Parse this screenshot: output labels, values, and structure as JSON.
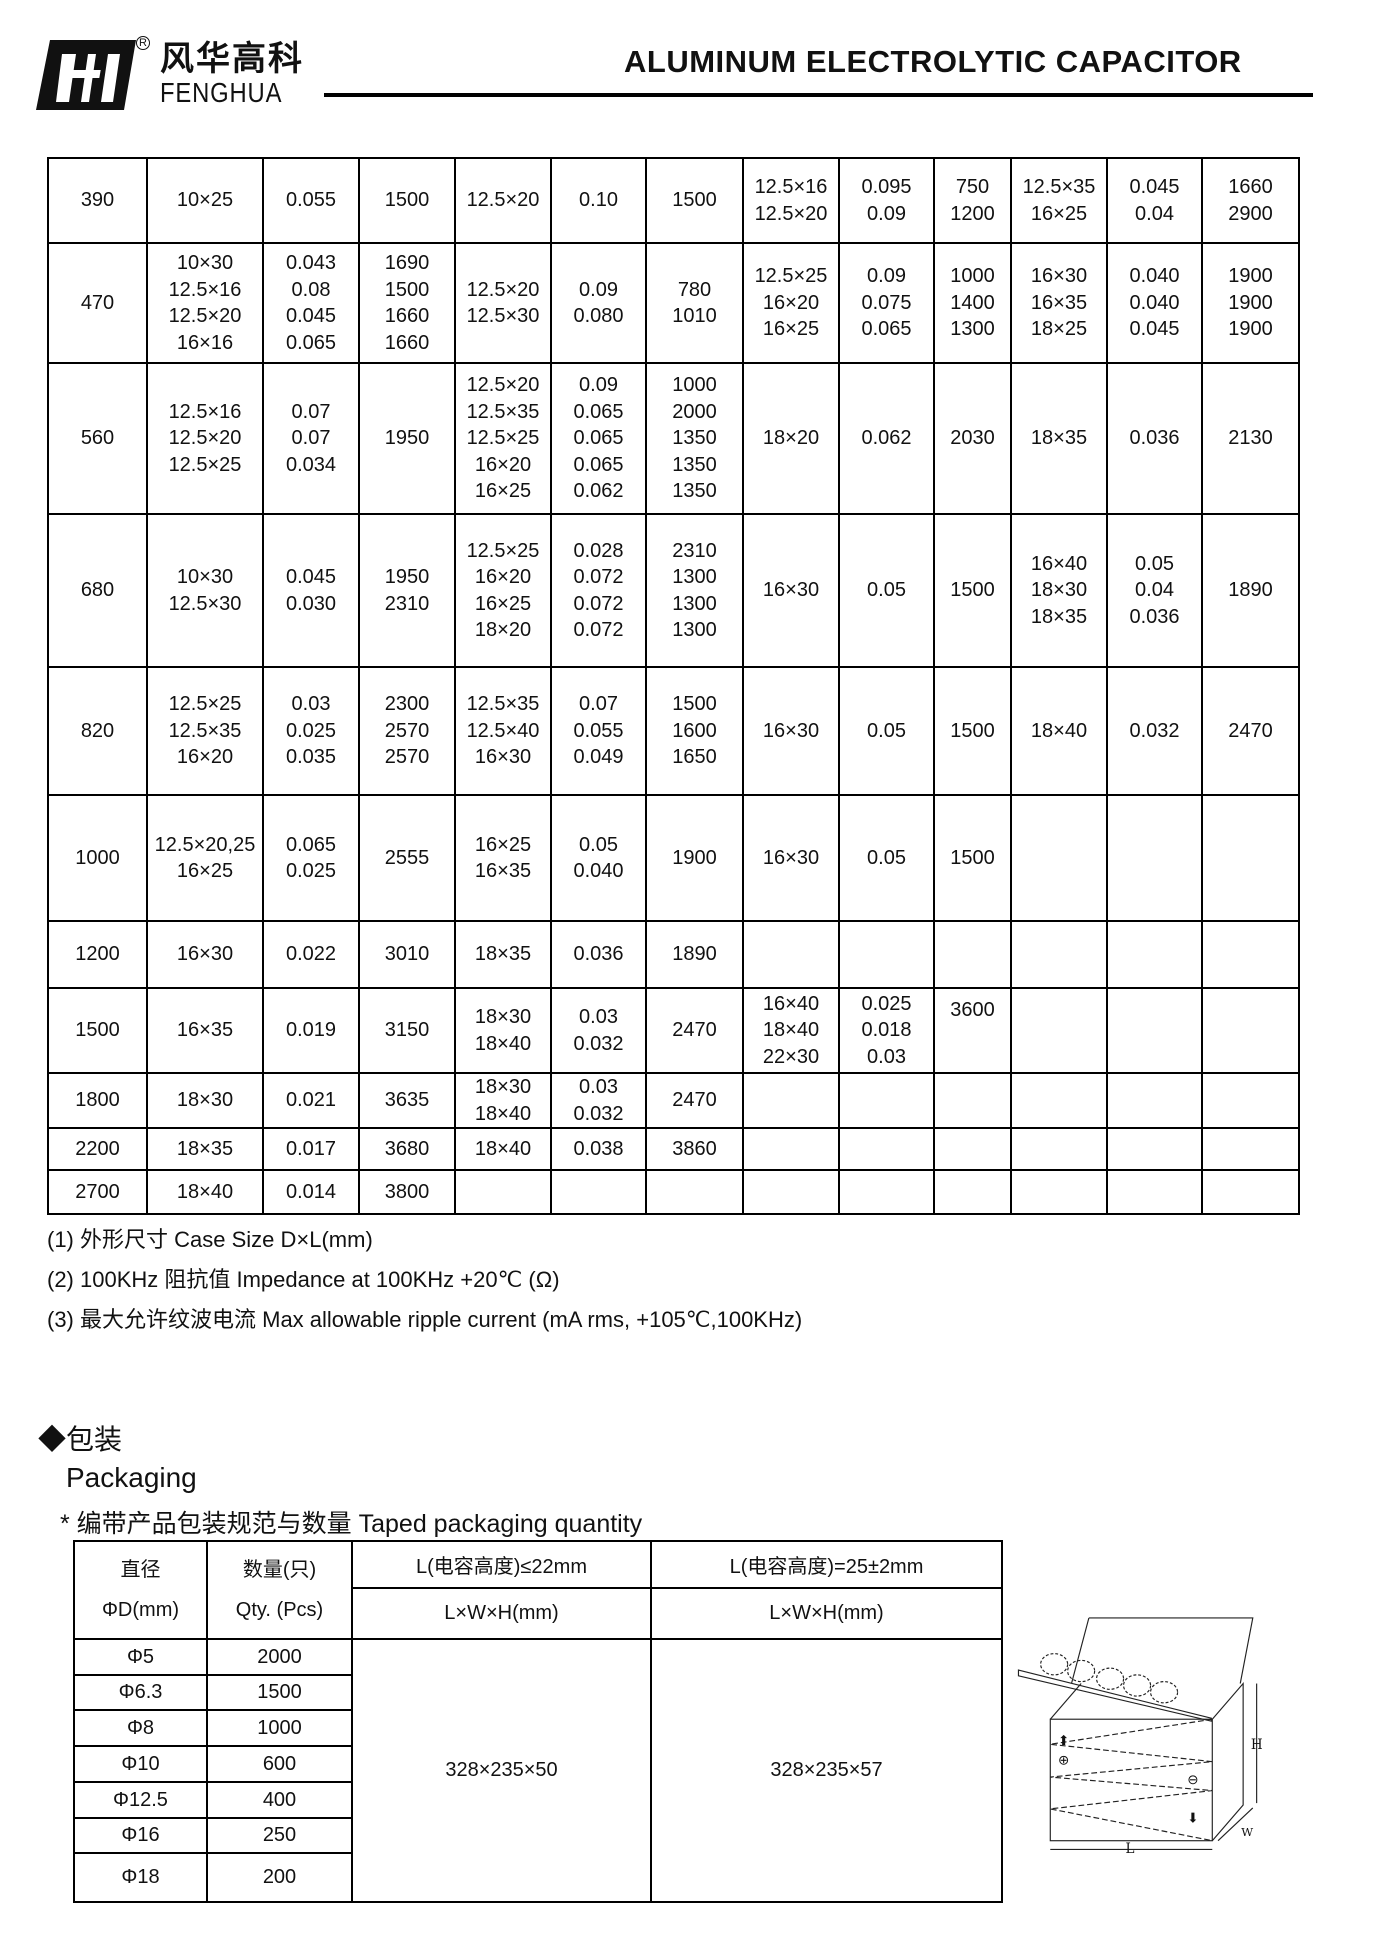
{
  "header": {
    "brand_cn": "风华高科",
    "brand_en": "FENGHUA",
    "registered_mark": "R",
    "title": "ALUMINUM ELECTROLYTIC CAPACITOR"
  },
  "spec_table": {
    "rows": [
      [
        "390",
        "10×25",
        "0.055",
        "1500",
        "12.5×20",
        "0.10",
        "1500",
        "12.5×16\n12.5×20",
        "0.095\n0.09",
        "750\n1200",
        "12.5×35\n16×25",
        "0.045\n0.04",
        "1660\n2900"
      ],
      [
        "470",
        "10×30\n12.5×16\n12.5×20\n16×16",
        "0.043\n0.08\n0.045\n0.065",
        "1690\n1500\n1660\n1660",
        "12.5×20\n12.5×30",
        "0.09\n0.080",
        "780\n1010",
        "12.5×25\n16×20\n16×25",
        "0.09\n0.075\n0.065",
        "1000\n1400\n1300",
        "16×30\n16×35\n18×25",
        "0.040\n0.040\n0.045",
        "1900\n1900\n1900"
      ],
      [
        "560",
        "12.5×16\n12.5×20\n12.5×25",
        "0.07\n0.07\n0.034",
        "1950",
        "12.5×20\n12.5×35\n12.5×25\n16×20\n16×25",
        "0.09\n0.065\n0.065\n0.065\n0.062",
        "1000\n2000\n1350\n1350\n1350",
        "18×20",
        "0.062",
        "2030",
        "18×35",
        "0.036",
        "2130"
      ],
      [
        "680",
        "10×30\n12.5×30",
        "0.045\n0.030",
        "1950\n2310",
        "12.5×25\n16×20\n16×25\n18×20",
        "0.028\n0.072\n0.072\n0.072",
        "2310\n1300\n1300\n1300",
        "16×30",
        "0.05",
        "1500",
        "16×40\n18×30\n18×35",
        "0.05\n0.04\n0.036",
        "1890"
      ],
      [
        "820",
        "12.5×25\n12.5×35\n16×20",
        "0.03\n0.025\n0.035",
        "2300\n2570\n2570",
        "12.5×35\n12.5×40\n16×30",
        "0.07\n0.055\n0.049",
        "1500\n1600\n1650",
        "16×30",
        "0.05",
        "1500",
        "18×40",
        "0.032",
        "2470"
      ],
      [
        "1000",
        "12.5×20,25\n16×25",
        "0.065\n0.025",
        "2555",
        "16×25\n16×35",
        "0.05\n0.040",
        "1900",
        "16×30",
        "0.05",
        "1500",
        "",
        "",
        ""
      ],
      [
        "1200",
        "16×30",
        "0.022",
        "3010",
        "18×35",
        "0.036",
        "1890",
        "",
        "",
        "",
        "",
        "",
        ""
      ],
      [
        "1500",
        "16×35",
        "0.019",
        "3150",
        "18×30\n18×40",
        "0.03\n0.032",
        "2470",
        "16×40\n18×40\n22×30",
        "0.025\n0.018\n0.03",
        "3600",
        "",
        "",
        ""
      ],
      [
        "1800",
        "18×30",
        "0.021",
        "3635",
        "18×30\n18×40",
        "0.03\n0.032",
        "2470",
        "",
        "",
        "",
        "",
        "",
        ""
      ],
      [
        "2200",
        "18×35",
        "0.017",
        "3680",
        "18×40",
        "0.038",
        "3860",
        "",
        "",
        "",
        "",
        "",
        ""
      ],
      [
        "2700",
        "18×40",
        "0.014",
        "3800",
        "",
        "",
        "",
        "",
        "",
        "",
        "",
        "",
        ""
      ]
    ]
  },
  "notes": [
    "(1)  外形尺寸    Case Size D×L(mm)",
    "(2) 100KHz 阻抗值 Impedance at 100KHz +20℃  (Ω)",
    "(3)  最大允许纹波电流  Max allowable ripple current (mA rms, +105℃,100KHz)"
  ],
  "packaging": {
    "heading_cn": "◆包装",
    "heading_en": "Packaging",
    "subheading": "*  编带产品包装规范与数量     Taped packaging quantity",
    "col_diameter_cn": "直径",
    "col_diameter_en": "ΦD(mm)",
    "col_qty_cn": "数量(只)",
    "col_qty_en": "Qty. (Pcs)",
    "col_short": "L(电容高度)≤22mm",
    "col_long": "L(电容高度)=25±2mm",
    "col_dims_short": "L×W×H(mm)",
    "col_dims_long": "L×W×H(mm)",
    "rows": [
      {
        "d": "Φ5",
        "qty": "2000"
      },
      {
        "d": "Φ6.3",
        "qty": "1500"
      },
      {
        "d": "Φ8",
        "qty": "1000"
      },
      {
        "d": "Φ10",
        "qty": "600"
      },
      {
        "d": "Φ12.5",
        "qty": "400"
      },
      {
        "d": "Φ16",
        "qty": "250"
      },
      {
        "d": "Φ18",
        "qty": "200"
      }
    ],
    "box_short": "328×235×50",
    "box_long": "328×235×57",
    "figure_labels": {
      "length": "L",
      "width": "W",
      "height": "H"
    }
  }
}
